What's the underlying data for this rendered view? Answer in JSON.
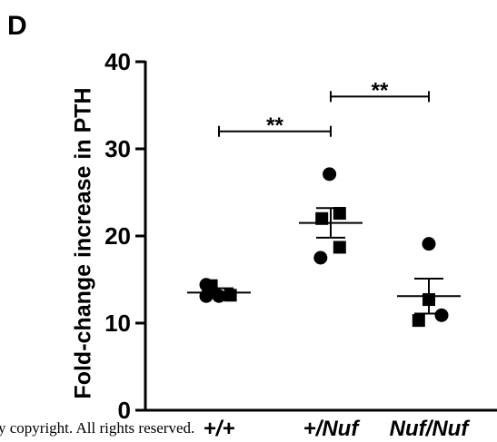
{
  "panel_label": "D",
  "footer_text": "y copyright. All rights reserved.",
  "chart_data": {
    "type": "scatter",
    "title": "",
    "ylabel": "Fold-change increase in PTH",
    "xlabel": "",
    "ylim": [
      0,
      40
    ],
    "yticks": [
      0,
      10,
      20,
      30,
      40
    ],
    "categories": [
      "+/+",
      "+/Nuf",
      "Nuf/Nuf"
    ],
    "groups": [
      {
        "category": "+/+",
        "mean": 13.5,
        "sem_low": 13.0,
        "sem_high": 14.0,
        "points": [
          {
            "y": 14.4,
            "marker": "circle",
            "offset": -0.5
          },
          {
            "y": 14.3,
            "marker": "square",
            "offset": -0.3
          },
          {
            "y": 13.1,
            "marker": "circle",
            "offset": -0.5
          },
          {
            "y": 13.1,
            "marker": "circle",
            "offset": 0.0
          },
          {
            "y": 13.2,
            "marker": "square",
            "offset": 0.45
          }
        ]
      },
      {
        "category": "+/Nuf",
        "mean": 21.5,
        "sem_low": 19.8,
        "sem_high": 23.2,
        "points": [
          {
            "y": 27.1,
            "marker": "circle",
            "offset": -0.05
          },
          {
            "y": 22.6,
            "marker": "square",
            "offset": 0.35
          },
          {
            "y": 22.0,
            "marker": "square",
            "offset": -0.35
          },
          {
            "y": 18.7,
            "marker": "square",
            "offset": 0.35
          },
          {
            "y": 17.5,
            "marker": "circle",
            "offset": -0.4
          }
        ]
      },
      {
        "category": "Nuf/Nuf",
        "mean": 13.1,
        "sem_low": 11.1,
        "sem_high": 15.1,
        "points": [
          {
            "y": 19.1,
            "marker": "circle",
            "offset": 0.0
          },
          {
            "y": 12.7,
            "marker": "square",
            "offset": 0.0
          },
          {
            "y": 10.9,
            "marker": "circle",
            "offset": 0.5
          },
          {
            "y": 10.3,
            "marker": "square",
            "offset": -0.4
          }
        ]
      }
    ],
    "significance": [
      {
        "from": "+/+",
        "to": "+/Nuf",
        "y": 32.0,
        "label": "**"
      },
      {
        "from": "+/Nuf",
        "to": "Nuf/Nuf",
        "y": 36.0,
        "label": "**"
      }
    ],
    "colors": {
      "marker": "#000000",
      "axis": "#000000"
    }
  }
}
